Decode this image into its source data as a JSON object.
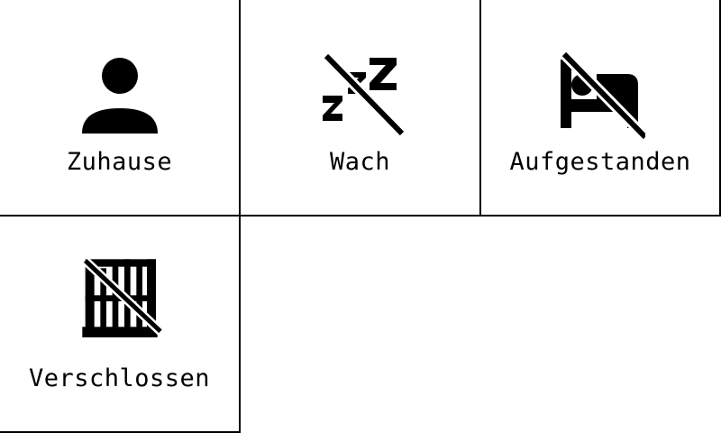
{
  "tiles": [
    {
      "label": "Zuhause",
      "icon": "person-icon"
    },
    {
      "label": "Wach",
      "icon": "sleep-off-icon"
    },
    {
      "label": "Aufgestanden",
      "icon": "bed-off-icon"
    },
    {
      "label": "Verschlossen",
      "icon": "gate-off-icon"
    }
  ]
}
